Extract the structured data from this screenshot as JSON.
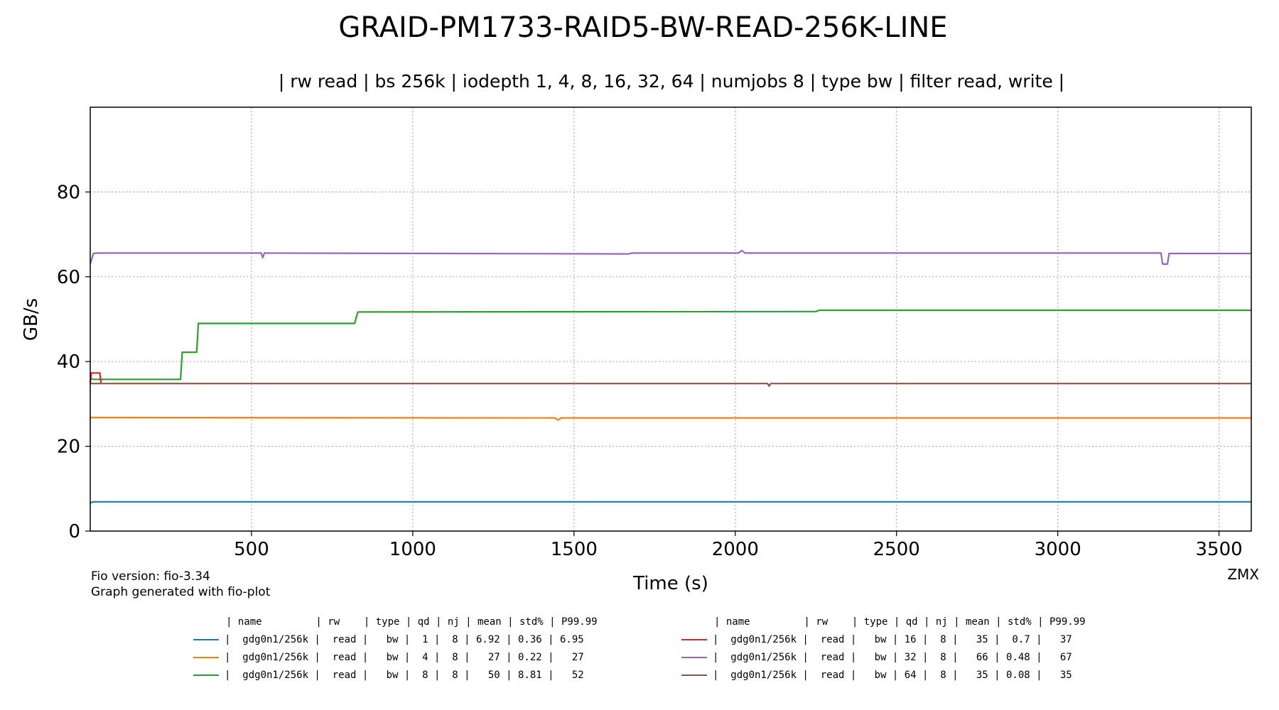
{
  "chart_data": {
    "type": "line",
    "title": "GRAID-PM1733-RAID5-BW-READ-256K-LINE",
    "subtitle": "| rw read | bs 256k | iodepth 1, 4, 8, 16, 32, 64 | numjobs 8 | type bw | filter read, write |",
    "xlabel": "Time (s)",
    "ylabel": "GB/s",
    "xlim": [
      0,
      3600
    ],
    "ylim": [
      0,
      100
    ],
    "xticks": [
      500,
      1000,
      1500,
      2000,
      2500,
      3000,
      3500
    ],
    "yticks": [
      0,
      20,
      40,
      60,
      80
    ],
    "grid": true,
    "corner_label": "ZMX",
    "footnotes": [
      "Fio version: fio-3.34",
      "Graph generated with fio-plot"
    ],
    "series": [
      {
        "color": "#1f77b4",
        "x": [
          0,
          10,
          3600
        ],
        "y": [
          6.7,
          6.9,
          6.9
        ]
      },
      {
        "color": "#ff7f0e",
        "x": [
          0,
          1440,
          1450,
          1460,
          3600
        ],
        "y": [
          26.8,
          26.7,
          26.2,
          26.7,
          26.7
        ]
      },
      {
        "color": "#2ca02c",
        "x": [
          0,
          10,
          280,
          285,
          330,
          335,
          820,
          825,
          830,
          2250,
          2260,
          3600
        ],
        "y": [
          36,
          35.8,
          35.8,
          42.2,
          42.2,
          49,
          49,
          50.5,
          51.7,
          51.8,
          52.1,
          52.1
        ]
      },
      {
        "color": "#d62728",
        "x": [
          0,
          3,
          6,
          30,
          33
        ],
        "y": [
          35,
          37.3,
          37.3,
          37.3,
          35
        ]
      },
      {
        "color": "#9467bd",
        "x": [
          0,
          10,
          20,
          530,
          535,
          540,
          1670,
          1680,
          2010,
          2020,
          2030,
          3320,
          3325,
          3340,
          3345,
          3600
        ],
        "y": [
          63,
          65.5,
          65.6,
          65.6,
          64.5,
          65.6,
          65.4,
          65.6,
          65.6,
          66.2,
          65.6,
          65.6,
          63,
          63,
          65.5,
          65.5
        ]
      },
      {
        "color": "#8c564b",
        "x": [
          0,
          2100,
          2105,
          2110,
          3600
        ],
        "y": [
          34.8,
          34.8,
          34.2,
          34.8,
          34.8
        ]
      }
    ],
    "legend": {
      "header": "| name         | rw    | type | qd | nj | mean | std% | P99.99",
      "rows": [
        {
          "color": "#1f77b4",
          "text": "|  gdg0n1/256k |  read |   bw |  1 |  8 | 6.92 | 0.36 | 6.95"
        },
        {
          "color": "#ff7f0e",
          "text": "|  gdg0n1/256k |  read |   bw |  4 |  8 |   27 | 0.22 |   27"
        },
        {
          "color": "#2ca02c",
          "text": "|  gdg0n1/256k |  read |   bw |  8 |  8 |   50 | 8.81 |   52"
        },
        {
          "color": "#d62728",
          "text": "|  gdg0n1/256k |  read |   bw | 16 |  8 |   35 |  0.7 |   37"
        },
        {
          "color": "#9467bd",
          "text": "|  gdg0n1/256k |  read |   bw | 32 |  8 |   66 | 0.48 |   67"
        },
        {
          "color": "#8c564b",
          "text": "|  gdg0n1/256k |  read |   bw | 64 |  8 |   35 | 0.08 |   35"
        }
      ]
    }
  }
}
